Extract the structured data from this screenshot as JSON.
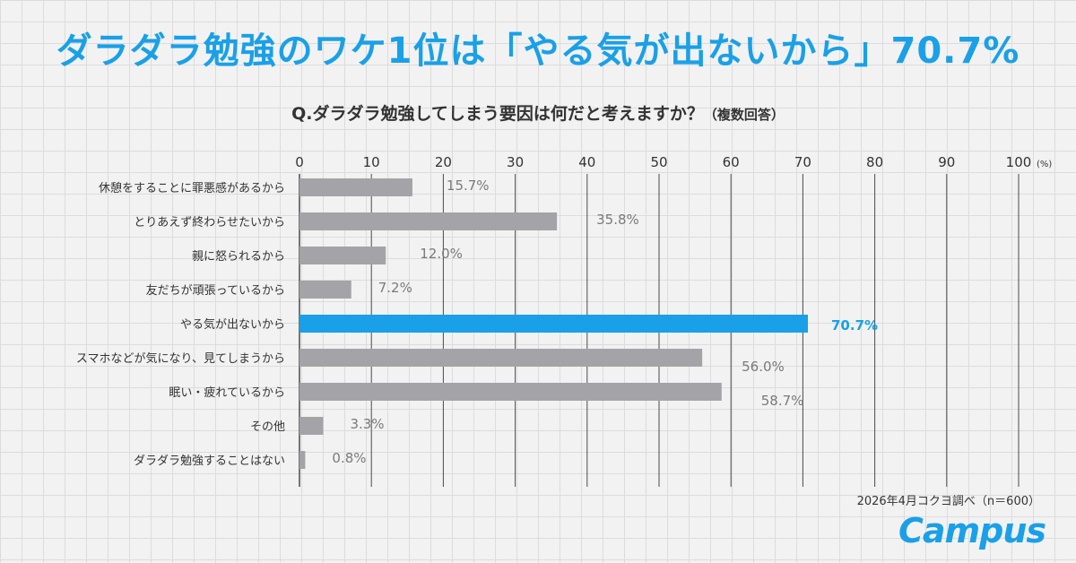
{
  "headline": "ダラダラ勉強のワケ1位は「やる気が出ないから」70.7%",
  "question": {
    "text": "Q.ダラダラ勉強してしまう要因は何だと考えますか？",
    "note": "（複数回答）"
  },
  "source": "2026年4月コクヨ調べ（n＝600）",
  "brand": "Campus",
  "colors": {
    "accent": "#1aa0e8",
    "bar": "#a4a3a8",
    "grid": "#4a4a4a"
  },
  "chart_data": {
    "type": "bar",
    "orientation": "horizontal",
    "categories": [
      "休憩をすることに罪悪感があるから",
      "とりあえず終わらせたいから",
      "親に怒られるから",
      "友だちが頑張っているから",
      "やる気が出ないから",
      "スマホなどが気になり、見てしまうから",
      "眠い・疲れているから",
      "その他",
      "ダラダラ勉強することはない"
    ],
    "values": [
      15.7,
      35.8,
      12.0,
      7.2,
      70.7,
      56.0,
      58.7,
      3.3,
      0.8
    ],
    "value_labels": [
      "15.7%",
      "35.8%",
      "12.0%",
      "7.2%",
      "70.7%",
      "56.0%",
      "58.7%",
      "3.3%",
      "0.8%"
    ],
    "highlight_index": 4,
    "xlim": [
      0,
      100
    ],
    "xticks": [
      "0",
      "10",
      "20",
      "30",
      "40",
      "50",
      "60",
      "70",
      "80",
      "90",
      "100"
    ],
    "x_unit": "(%)",
    "axis_position": "top",
    "grid": true
  }
}
